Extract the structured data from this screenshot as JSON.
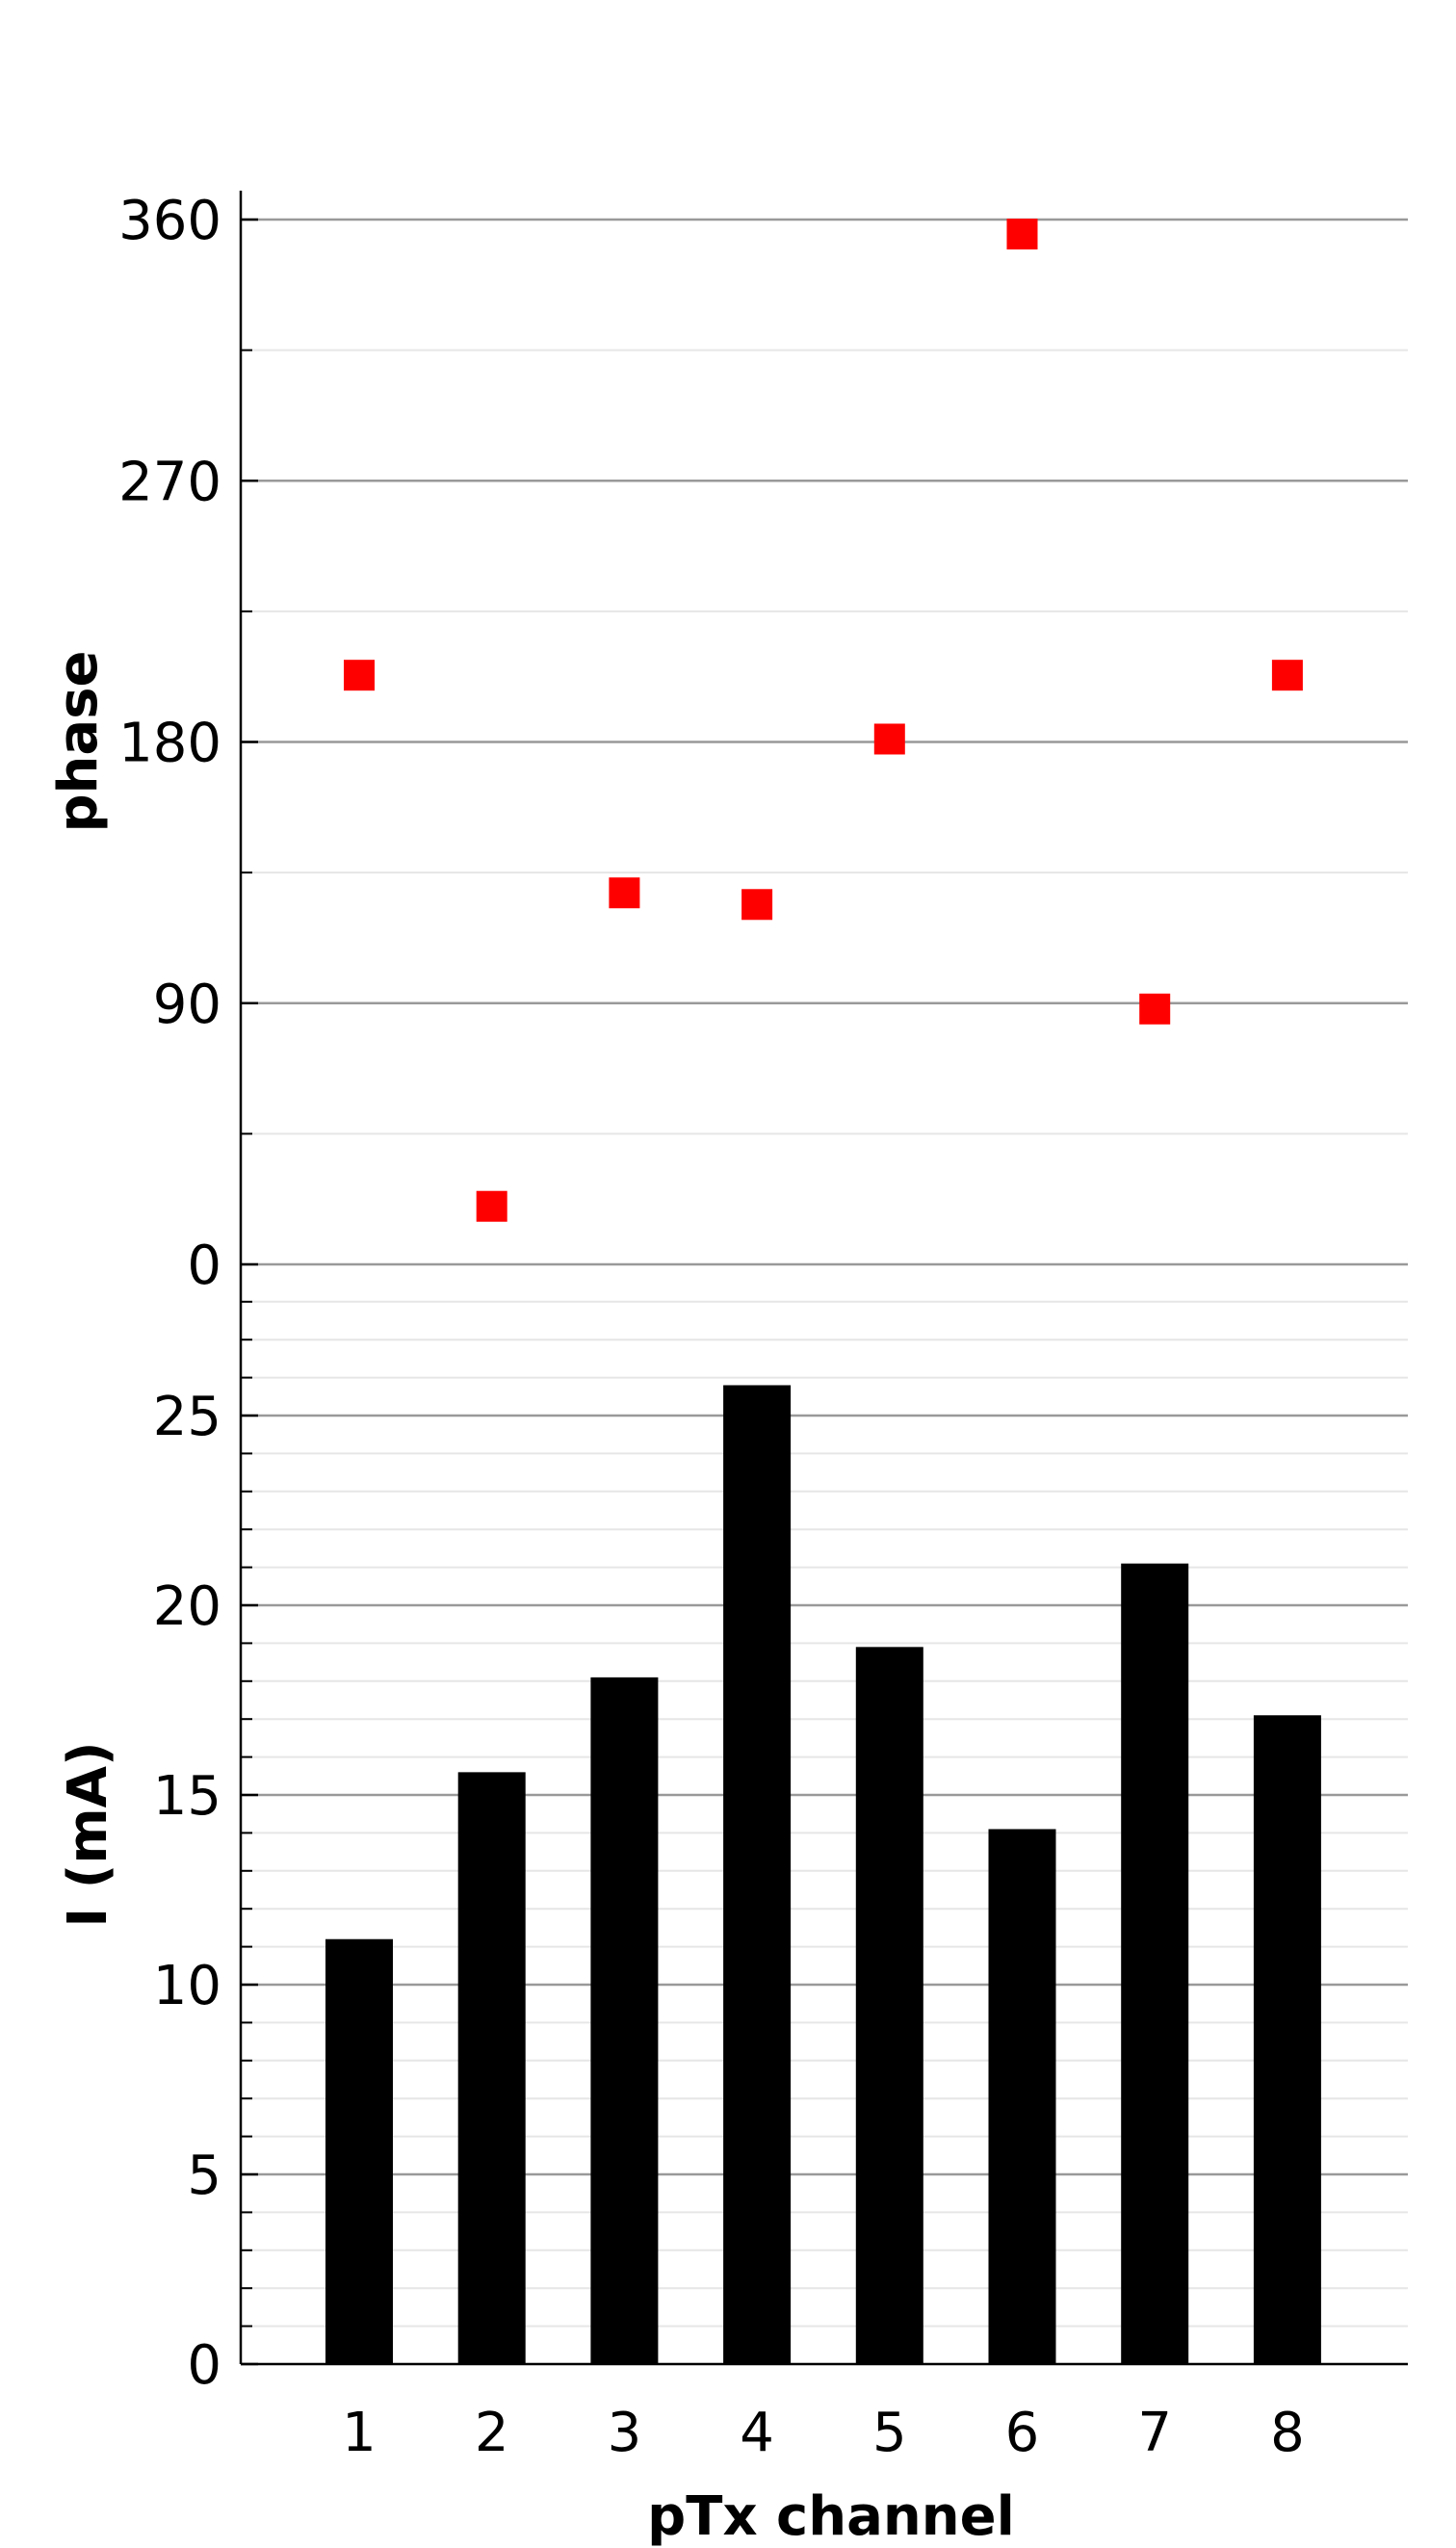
{
  "colors": {
    "bar": "#000000",
    "marker": "#ff0000",
    "major_grid": "#999999",
    "minor_grid": "#e6e6e6",
    "axis": "#000000"
  },
  "chart_data": [
    {
      "type": "scatter",
      "panel": "top",
      "ylabel": "phase",
      "xlabel": "",
      "ylim": [
        0,
        360
      ],
      "yticks": [
        0,
        90,
        180,
        270,
        360
      ],
      "y_minor_step": 45,
      "grid": true,
      "marker": "square",
      "x": [
        1,
        2,
        3,
        4,
        5,
        6,
        7,
        8
      ],
      "y": [
        203,
        20,
        128,
        124,
        181,
        355,
        88,
        203
      ]
    },
    {
      "type": "bar",
      "panel": "bottom",
      "xlabel": "pTx channel",
      "ylabel": "I (mA)",
      "ylim": [
        0,
        28
      ],
      "yticks": [
        0,
        5,
        10,
        15,
        20,
        25
      ],
      "y_minor_step": 1,
      "grid": true,
      "categories": [
        "1",
        "2",
        "3",
        "4",
        "5",
        "6",
        "7",
        "8"
      ],
      "values": [
        11.2,
        15.6,
        18.1,
        25.8,
        18.9,
        14.1,
        21.1,
        17.1
      ]
    }
  ]
}
